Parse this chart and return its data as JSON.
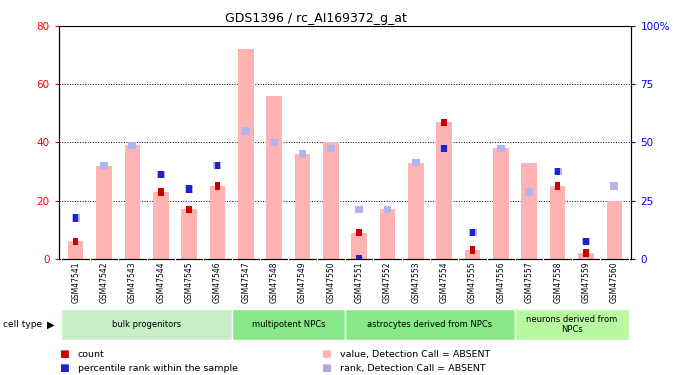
{
  "title": "GDS1396 / rc_AI169372_g_at",
  "samples": [
    "GSM47541",
    "GSM47542",
    "GSM47543",
    "GSM47544",
    "GSM47545",
    "GSM47546",
    "GSM47547",
    "GSM47548",
    "GSM47549",
    "GSM47550",
    "GSM47551",
    "GSM47552",
    "GSM47553",
    "GSM47554",
    "GSM47555",
    "GSM47556",
    "GSM47557",
    "GSM47558",
    "GSM47559",
    "GSM47560"
  ],
  "absent_value_bars": [
    6,
    32,
    39,
    23,
    17,
    25,
    72,
    56,
    36,
    40,
    9,
    17,
    33,
    47,
    3,
    38,
    33,
    25,
    2,
    20
  ],
  "absent_rank_bars": [
    14,
    32,
    39,
    29,
    24,
    32,
    44,
    40,
    36,
    38,
    17,
    17,
    33,
    38,
    9,
    38,
    23,
    30,
    6,
    25
  ],
  "count_values": [
    6,
    0,
    0,
    23,
    17,
    25,
    0,
    0,
    0,
    0,
    9,
    0,
    0,
    47,
    3,
    0,
    0,
    25,
    2,
    0
  ],
  "rank_values": [
    14,
    32,
    39,
    29,
    24,
    32,
    44,
    40,
    36,
    38,
    0,
    17,
    33,
    38,
    9,
    38,
    23,
    30,
    6,
    25
  ],
  "group_labels": [
    "bulk progenitors",
    "multipotent NPCs",
    "astrocytes derived from NPCs",
    "neurons derived from\nNPCs"
  ],
  "group_starts": [
    0,
    6,
    10,
    16
  ],
  "group_ends": [
    6,
    10,
    16,
    20
  ],
  "group_colors": [
    "#c8eec8",
    "#88e888",
    "#88e888",
    "#b8f8a0"
  ],
  "ylim_left": [
    0,
    80
  ],
  "ylim_right": [
    0,
    100
  ],
  "absent_bar_color": "#ffb3b3",
  "absent_rank_color": "#b3b3ee",
  "count_color": "#cc0000",
  "rank_color": "#2222cc",
  "absent_rank_color_legend": "#aaaadd"
}
